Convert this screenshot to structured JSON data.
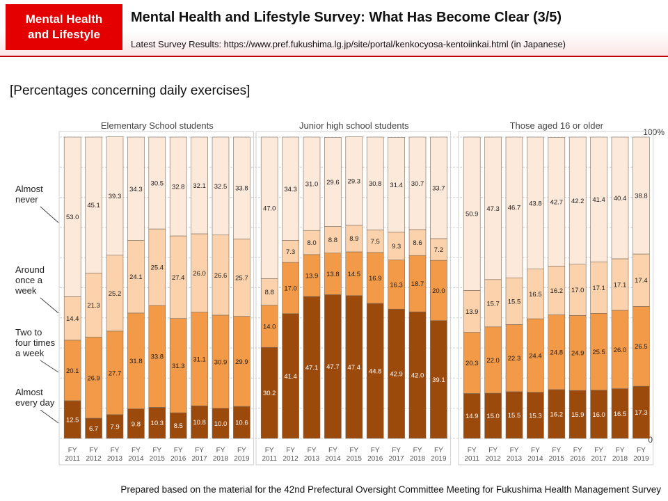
{
  "header": {
    "badge_line1": "Mental Health",
    "badge_line2": "and Lifestyle",
    "title": "Mental Health and Lifestyle Survey: What Has Become Clear (3/5)",
    "subtitle": "Latest Survey Results: https://www.pref.fukushima.lg.jp/site/portal/kenkocyosa-kentoiinkai.html  (in Japanese)"
  },
  "section_title": "[Percentages concerning daily exercises]",
  "footer": "Prepared based on the material for the 42nd Prefectural Oversight Committee Meeting for Fukushima Health Management Survey",
  "chart_data": {
    "type": "bar",
    "stacked": true,
    "percent_scale": true,
    "ylim": [
      0,
      100
    ],
    "y_top_label": "100%",
    "y_bottom_label": "0",
    "categories": [
      "FY 2011",
      "FY 2012",
      "FY 2013",
      "FY 2014",
      "FY 2015",
      "FY 2016",
      "FY 2017",
      "FY 2018",
      "FY 2019"
    ],
    "category_line1": [
      "FY",
      "FY",
      "FY",
      "FY",
      "FY",
      "FY",
      "FY",
      "FY",
      "FY"
    ],
    "category_line2": [
      "2011",
      "2012",
      "2013",
      "2014",
      "2015",
      "2016",
      "2017",
      "2018",
      "2019"
    ],
    "series_order": [
      "Almost every day",
      "Two to four times a week",
      "Around once a week",
      "Almost never"
    ],
    "series_colors": [
      "#9b4a0c",
      "#f39a48",
      "#fbd2ac",
      "#fde9da"
    ],
    "legend": [
      {
        "lines": [
          "Almost",
          "never"
        ]
      },
      {
        "lines": [
          "Around",
          "once a",
          "week"
        ]
      },
      {
        "lines": [
          "Two to",
          "four times",
          "a week"
        ]
      },
      {
        "lines": [
          "Almost",
          "every day"
        ]
      }
    ],
    "groups": [
      {
        "title": "Elementary School students",
        "series": [
          {
            "name": "Almost every day",
            "values": [
              12.5,
              6.7,
              7.9,
              9.8,
              10.3,
              8.5,
              10.8,
              10.0,
              10.6
            ]
          },
          {
            "name": "Two to four times a week",
            "values": [
              20.1,
              26.9,
              27.7,
              31.8,
              33.8,
              31.3,
              31.1,
              30.9,
              29.9
            ]
          },
          {
            "name": "Around once a week",
            "values": [
              14.4,
              21.3,
              25.2,
              24.1,
              25.4,
              27.4,
              26.0,
              26.6,
              25.7
            ]
          },
          {
            "name": "Almost never",
            "values": [
              53.0,
              45.1,
              39.3,
              34.3,
              30.5,
              32.8,
              32.1,
              32.5,
              33.8
            ]
          }
        ]
      },
      {
        "title": "Junior high school students",
        "series": [
          {
            "name": "Almost every day",
            "values": [
              30.2,
              41.4,
              47.1,
              47.7,
              47.4,
              44.8,
              42.9,
              42.0,
              39.1
            ]
          },
          {
            "name": "Two to four times a week",
            "values": [
              14.0,
              17.0,
              13.9,
              13.8,
              14.5,
              16.9,
              16.3,
              18.7,
              20.0
            ]
          },
          {
            "name": "Around once a week",
            "values": [
              8.8,
              7.3,
              8.0,
              8.8,
              8.9,
              7.5,
              9.3,
              8.6,
              7.2
            ]
          },
          {
            "name": "Almost never",
            "values": [
              47.0,
              34.3,
              31.0,
              29.6,
              29.3,
              30.8,
              31.4,
              30.7,
              33.7
            ]
          }
        ]
      },
      {
        "title": "Those aged 16 or older",
        "series": [
          {
            "name": "Almost every day",
            "values": [
              14.9,
              15.0,
              15.5,
              15.3,
              16.2,
              15.9,
              16.0,
              16.5,
              17.3
            ]
          },
          {
            "name": "Two to four times a week",
            "values": [
              20.3,
              22.0,
              22.3,
              24.4,
              24.8,
              24.9,
              25.5,
              26.0,
              26.5
            ]
          },
          {
            "name": "Around once a week",
            "values": [
              13.9,
              15.7,
              15.5,
              16.5,
              16.2,
              17.0,
              17.1,
              17.1,
              17.4
            ]
          },
          {
            "name": "Almost never",
            "values": [
              50.9,
              47.3,
              46.7,
              43.8,
              42.7,
              42.2,
              41.4,
              40.4,
              38.8
            ]
          }
        ]
      }
    ]
  }
}
